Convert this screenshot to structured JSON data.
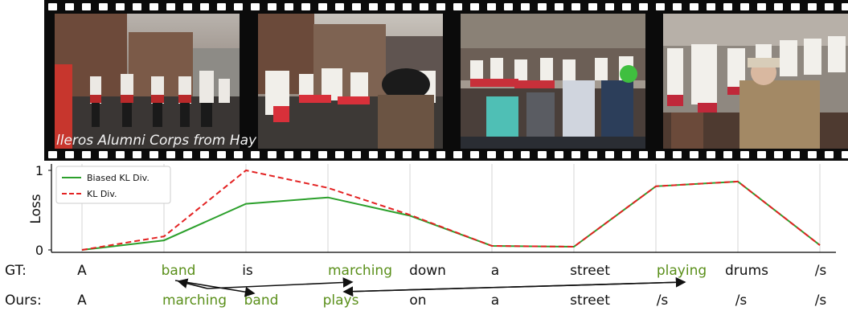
{
  "video": {
    "caption": "lleros Alumni Corps from Hay"
  },
  "chart_data": {
    "type": "line",
    "ylabel": "Loss",
    "ylim": [
      0,
      1
    ],
    "yticks": [
      "0",
      "1"
    ],
    "x": [
      1,
      2,
      3,
      4,
      5,
      6,
      7,
      8,
      9,
      10
    ],
    "grid": "vertical",
    "legend": "top-left",
    "series": [
      {
        "name": "Biased KL Div.",
        "color": "#2ca02c",
        "style": "solid",
        "values": [
          0.0,
          0.12,
          0.58,
          0.66,
          0.43,
          0.05,
          0.04,
          0.8,
          0.86,
          0.06
        ]
      },
      {
        "name": "KL Div.",
        "color": "#e32222",
        "style": "dashed",
        "values": [
          0.0,
          0.17,
          1.0,
          0.78,
          0.44,
          0.05,
          0.04,
          0.8,
          0.86,
          0.06
        ]
      }
    ]
  },
  "sentences": {
    "gt_label": "GT:",
    "ours_label": "Ours:",
    "gt": [
      "A",
      "band",
      "is",
      "marching",
      "down",
      "a",
      "street",
      "playing",
      "drums",
      "/s"
    ],
    "ours": [
      "A",
      "marching",
      "band",
      "plays",
      "on",
      "a",
      "street",
      "/s",
      "/s",
      "/s"
    ],
    "highlight_gt": [
      1,
      3,
      7
    ],
    "highlight_ours": [
      1,
      2,
      3
    ],
    "highlight_color": "#5a8f1a"
  }
}
